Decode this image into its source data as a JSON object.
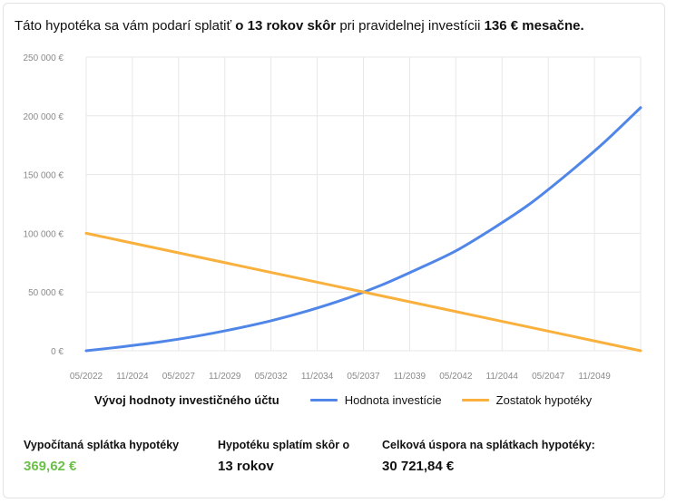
{
  "headline": {
    "prefix": "Táto hypotéka sa vám podarí splatiť",
    "bold1": "o 13 rokov skôr",
    "middle": "pri pravidelnej investícii",
    "bold2": "136 € mesačne."
  },
  "legend": {
    "title": "Vývoj hodnoty investičného účtu",
    "items": [
      "Hodnota investície",
      "Zostatok hypotéky"
    ]
  },
  "colors": {
    "investment": "#4f86e8",
    "mortgage": "#f9b03d",
    "grid": "#e7e7e7",
    "axis_text": "#8a8a8a",
    "accent_green": "#6cc04a"
  },
  "chart_data": {
    "type": "line",
    "ylim": [
      0,
      250000
    ],
    "y_ticks": [
      0,
      50000,
      100000,
      150000,
      200000,
      250000
    ],
    "y_tick_labels": [
      "0 €",
      "50 000 €",
      "100 000 €",
      "150 000 €",
      "200 000 €",
      "250 000 €"
    ],
    "x_tick_labels": [
      "05/2022",
      "11/2024",
      "05/2027",
      "11/2029",
      "05/2032",
      "11/2034",
      "05/2037",
      "11/2039",
      "05/2042",
      "11/2044",
      "05/2047",
      "11/2049"
    ],
    "x_range": [
      "05/2022",
      "05/2052"
    ],
    "grid": true,
    "series": [
      {
        "name": "Hodnota investície",
        "x": [
          "05/2022",
          "05/2024",
          "05/2026",
          "05/2028",
          "05/2030",
          "05/2032",
          "05/2034",
          "05/2036",
          "05/2038",
          "05/2040",
          "05/2042",
          "05/2044",
          "05/2046",
          "05/2048",
          "05/2050",
          "05/2052"
        ],
        "values": [
          0,
          3500,
          7500,
          12500,
          18500,
          25500,
          34000,
          44000,
          56000,
          70000,
          85000,
          104000,
          125000,
          150000,
          177000,
          207000
        ]
      },
      {
        "name": "Zostatok hypotéky",
        "x": [
          "05/2022",
          "05/2052"
        ],
        "values": [
          100000,
          0
        ]
      }
    ]
  },
  "stats": [
    {
      "label": "Vypočítaná splátka hypotéky",
      "value": "369,62 €"
    },
    {
      "label": "Hypotéku splatím skôr o",
      "value": "13 rokov"
    },
    {
      "label": "Celková úspora na splátkach hypotéky:",
      "value": "30 721,84 €"
    }
  ]
}
